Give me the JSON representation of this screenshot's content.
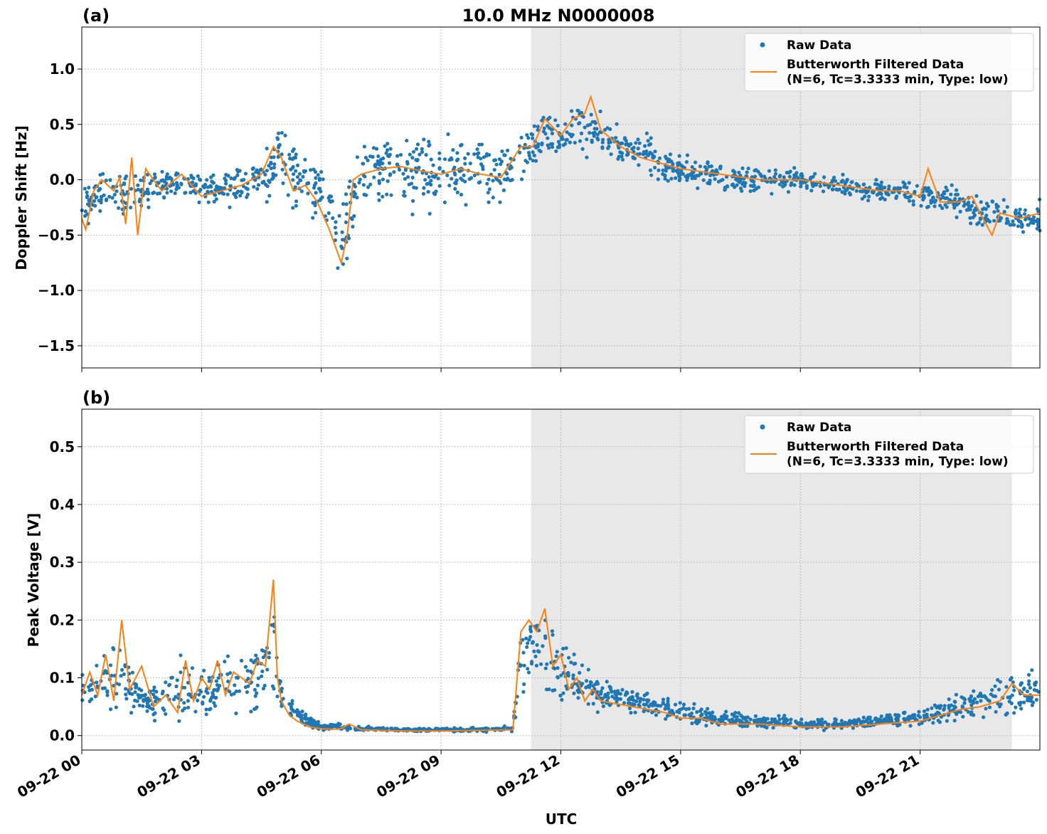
{
  "figure": {
    "title": "10.0 MHz N0000008",
    "xlabel": "UTC",
    "x_tick_labels": [
      "09-22 00",
      "09-22 03",
      "09-22 06",
      "09-22 09",
      "09-22 12",
      "09-22 15",
      "09-22 18",
      "09-22 21"
    ]
  },
  "colors": {
    "raw": "#1f77b4",
    "filtered": "#ff7f0e",
    "shade": "#e8e8e8"
  },
  "chart_data": [
    {
      "type": "scatter",
      "panel_label": "(a)",
      "ylabel": "Doppler Shift [Hz]",
      "xlim_hours": [
        0,
        24
      ],
      "ylim": [
        -1.7,
        1.38
      ],
      "y_ticks": [
        1.0,
        0.5,
        0.0,
        -0.5,
        -1.0,
        -1.5
      ],
      "y_tick_labels": [
        "1.0",
        "0.5",
        "0.0",
        "−0.5",
        "−1.0",
        "−1.5"
      ],
      "shaded_region_hours": [
        11.25,
        23.3
      ],
      "grid": true,
      "legend": {
        "placement": "upper right",
        "raw_label": "Raw Data",
        "filtered_label_line1": "Butterworth Filtered Data",
        "filtered_label_line2": "(N=6, Tc=3.3333 min, Type: low)"
      },
      "filtered_series": {
        "name": "Butterworth Filtered Data",
        "x_hours": [
          0,
          0.1,
          0.3,
          0.5,
          0.8,
          0.95,
          1.1,
          1.25,
          1.4,
          1.6,
          2.0,
          2.5,
          3.0,
          3.5,
          4.0,
          4.5,
          4.8,
          5.0,
          5.3,
          5.6,
          5.9,
          6.2,
          6.5,
          6.65,
          6.8,
          7.0,
          7.5,
          8.0,
          8.5,
          9.0,
          9.5,
          10.0,
          10.5,
          11.0,
          11.3,
          11.6,
          12.0,
          12.3,
          12.6,
          12.75,
          13.0,
          13.5,
          14.0,
          14.5,
          15.0,
          16.0,
          17.0,
          18.0,
          19.0,
          20.0,
          20.5,
          21.0,
          21.2,
          21.5,
          22.0,
          22.3,
          22.5,
          22.8,
          23.0,
          23.5,
          24.0
        ],
        "y": [
          -0.35,
          -0.45,
          -0.1,
          0.0,
          -0.1,
          0.02,
          -0.4,
          0.2,
          -0.5,
          0.1,
          -0.1,
          0.05,
          -0.15,
          -0.1,
          -0.05,
          0.05,
          0.3,
          0.2,
          -0.1,
          -0.05,
          -0.2,
          -0.45,
          -0.75,
          -0.5,
          0.0,
          0.05,
          0.1,
          0.12,
          0.08,
          0.05,
          0.1,
          0.05,
          0.02,
          0.3,
          0.3,
          0.55,
          0.4,
          0.55,
          0.6,
          0.75,
          0.45,
          0.3,
          0.2,
          0.15,
          0.1,
          0.05,
          0.0,
          0.0,
          -0.05,
          -0.1,
          -0.1,
          -0.15,
          0.1,
          -0.2,
          -0.2,
          -0.15,
          -0.3,
          -0.5,
          -0.3,
          -0.35,
          -0.3
        ]
      },
      "raw_series": {
        "name": "Raw Data",
        "x_hours": [
          0,
          0.5,
          1.0,
          1.5,
          2.0,
          2.5,
          3.0,
          3.5,
          4.0,
          4.5,
          5.0,
          5.5,
          6.0,
          6.5,
          7.0,
          7.5,
          8.0,
          8.5,
          9.0,
          9.5,
          10.0,
          10.5,
          11.0,
          11.5,
          12.0,
          12.5,
          13.0,
          13.5,
          14.0,
          14.5,
          15.0,
          15.5,
          16.0,
          16.5,
          17.0,
          17.5,
          18.0,
          18.5,
          19.0,
          19.5,
          20.0,
          20.5,
          21.0,
          21.5,
          22.0,
          22.5,
          23.0,
          23.5,
          24.0
        ],
        "center": [
          -0.25,
          -0.1,
          -0.15,
          -0.1,
          -0.05,
          0.0,
          -0.1,
          -0.1,
          -0.05,
          0.05,
          0.2,
          -0.05,
          -0.1,
          -0.6,
          0.05,
          0.1,
          0.1,
          0.1,
          0.05,
          0.1,
          0.05,
          0.05,
          0.2,
          0.45,
          0.4,
          0.5,
          0.4,
          0.3,
          0.25,
          0.15,
          0.1,
          0.05,
          0.05,
          0.0,
          0.0,
          0.0,
          0.0,
          -0.05,
          -0.05,
          -0.1,
          -0.1,
          -0.1,
          -0.15,
          -0.15,
          -0.2,
          -0.3,
          -0.3,
          -0.35,
          -0.35
        ],
        "spread": [
          0.3,
          0.25,
          0.35,
          0.25,
          0.2,
          0.2,
          0.2,
          0.2,
          0.25,
          0.35,
          0.4,
          0.35,
          0.4,
          0.45,
          0.45,
          0.45,
          0.45,
          0.45,
          0.45,
          0.4,
          0.4,
          0.35,
          0.3,
          0.3,
          0.3,
          0.3,
          0.3,
          0.25,
          0.25,
          0.22,
          0.2,
          0.18,
          0.18,
          0.15,
          0.15,
          0.15,
          0.15,
          0.12,
          0.12,
          0.12,
          0.12,
          0.12,
          0.15,
          0.15,
          0.18,
          0.2,
          0.2,
          0.2,
          0.2
        ]
      }
    },
    {
      "type": "scatter",
      "panel_label": "(b)",
      "ylabel": "Peak Voltage [V]",
      "xlim_hours": [
        0,
        24
      ],
      "ylim": [
        -0.025,
        0.565
      ],
      "y_ticks": [
        0.5,
        0.4,
        0.3,
        0.2,
        0.1,
        0.0
      ],
      "y_tick_labels": [
        "0.5",
        "0.4",
        "0.3",
        "0.2",
        "0.1",
        "0.0"
      ],
      "shaded_region_hours": [
        11.25,
        23.3
      ],
      "grid": true,
      "legend": {
        "placement": "upper right",
        "raw_label": "Raw Data",
        "filtered_label_line1": "Butterworth Filtered Data",
        "filtered_label_line2": "(N=6, Tc=3.3333 min, Type: low)"
      },
      "filtered_series": {
        "name": "Butterworth Filtered Data",
        "x_hours": [
          0,
          0.2,
          0.4,
          0.6,
          0.8,
          1.0,
          1.2,
          1.5,
          1.8,
          2.1,
          2.4,
          2.6,
          2.8,
          3.0,
          3.2,
          3.4,
          3.6,
          3.8,
          4.0,
          4.2,
          4.4,
          4.6,
          4.8,
          4.9,
          5.0,
          5.2,
          5.4,
          5.7,
          6.0,
          6.3,
          6.5,
          6.7,
          7.0,
          8.0,
          9.0,
          10.0,
          10.8,
          11.0,
          11.2,
          11.4,
          11.6,
          11.8,
          12.0,
          12.2,
          12.4,
          12.6,
          12.8,
          13.0,
          13.4,
          13.8,
          14.2,
          14.6,
          15.0,
          15.5,
          16.0,
          17.0,
          18.0,
          19.0,
          20.0,
          21.0,
          21.5,
          22.0,
          22.5,
          23.0,
          23.3,
          23.6,
          24.0
        ],
        "y": [
          0.07,
          0.11,
          0.07,
          0.14,
          0.06,
          0.2,
          0.08,
          0.12,
          0.05,
          0.07,
          0.04,
          0.13,
          0.06,
          0.1,
          0.08,
          0.13,
          0.07,
          0.11,
          0.1,
          0.09,
          0.13,
          0.12,
          0.27,
          0.1,
          0.06,
          0.035,
          0.025,
          0.015,
          0.012,
          0.011,
          0.012,
          0.02,
          0.01,
          0.008,
          0.008,
          0.009,
          0.01,
          0.18,
          0.2,
          0.18,
          0.22,
          0.12,
          0.14,
          0.08,
          0.1,
          0.06,
          0.08,
          0.06,
          0.055,
          0.05,
          0.045,
          0.04,
          0.03,
          0.03,
          0.02,
          0.02,
          0.015,
          0.015,
          0.02,
          0.025,
          0.035,
          0.045,
          0.05,
          0.06,
          0.09,
          0.07,
          0.07
        ]
      },
      "raw_series": {
        "name": "Raw Data",
        "x_hours": [
          0,
          0.5,
          1.0,
          1.5,
          2.0,
          2.5,
          3.0,
          3.5,
          4.0,
          4.5,
          4.8,
          5.0,
          5.5,
          6.0,
          6.5,
          7.0,
          8.0,
          9.0,
          10.0,
          10.8,
          11.0,
          11.5,
          12.0,
          12.5,
          13.0,
          13.5,
          14.0,
          14.5,
          15.0,
          15.5,
          16.0,
          17.0,
          18.0,
          19.0,
          20.0,
          21.0,
          21.5,
          22.0,
          22.5,
          23.0,
          23.5,
          24.0
        ],
        "center": [
          0.08,
          0.09,
          0.1,
          0.06,
          0.06,
          0.08,
          0.07,
          0.09,
          0.09,
          0.11,
          0.15,
          0.07,
          0.03,
          0.015,
          0.015,
          0.012,
          0.01,
          0.01,
          0.01,
          0.012,
          0.14,
          0.15,
          0.11,
          0.09,
          0.07,
          0.06,
          0.055,
          0.05,
          0.04,
          0.035,
          0.03,
          0.025,
          0.02,
          0.02,
          0.025,
          0.03,
          0.04,
          0.05,
          0.06,
          0.07,
          0.08,
          0.08
        ],
        "spread": [
          0.05,
          0.06,
          0.08,
          0.04,
          0.04,
          0.07,
          0.05,
          0.06,
          0.07,
          0.09,
          0.12,
          0.05,
          0.02,
          0.008,
          0.01,
          0.005,
          0.004,
          0.004,
          0.005,
          0.006,
          0.1,
          0.1,
          0.07,
          0.05,
          0.04,
          0.035,
          0.03,
          0.03,
          0.025,
          0.02,
          0.02,
          0.015,
          0.012,
          0.012,
          0.015,
          0.02,
          0.025,
          0.03,
          0.035,
          0.045,
          0.05,
          0.05
        ]
      }
    }
  ]
}
